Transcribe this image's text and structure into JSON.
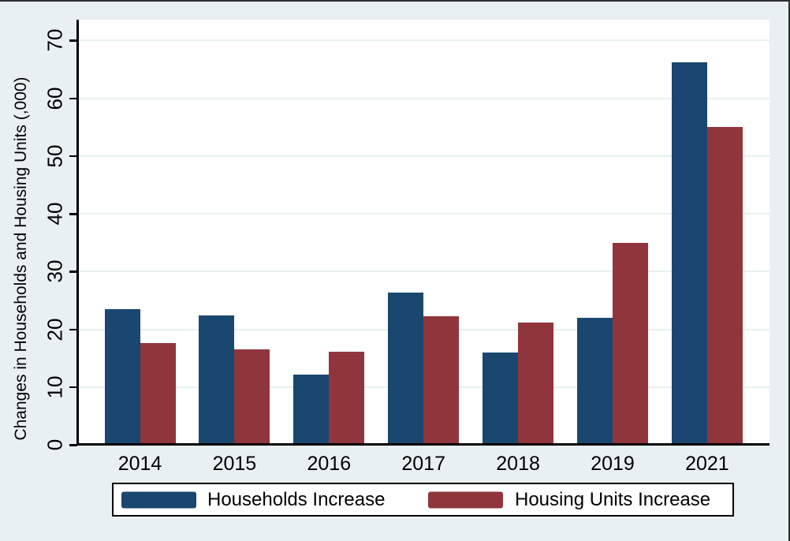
{
  "figure": {
    "background": "#e9f0f2",
    "plot_background": "#ffffff",
    "frame_color": "#2e2e2e"
  },
  "chart_data": {
    "type": "bar",
    "title": "",
    "xlabel": "",
    "ylabel": "Changes in Households and Housing Units (,000)",
    "categories": [
      "2014",
      "2015",
      "2016",
      "2017",
      "2018",
      "2019",
      "2021"
    ],
    "series": [
      {
        "name": "Households Increase",
        "color": "#1a476f",
        "values": [
          23.5,
          22.4,
          12.2,
          26.3,
          16.0,
          22.0,
          66.2
        ]
      },
      {
        "name": "Housing Units Increase",
        "color": "#90353b",
        "values": [
          17.6,
          16.5,
          16.1,
          22.3,
          21.2,
          34.9,
          55.0
        ]
      }
    ],
    "yticks": [
      0,
      10,
      20,
      30,
      40,
      50,
      60,
      70
    ],
    "ylim": [
      0,
      73.6
    ],
    "grid": "horizontal",
    "gridline_color": "#e7eff2",
    "axis_color": "#000000",
    "legend_position": "bottom"
  }
}
